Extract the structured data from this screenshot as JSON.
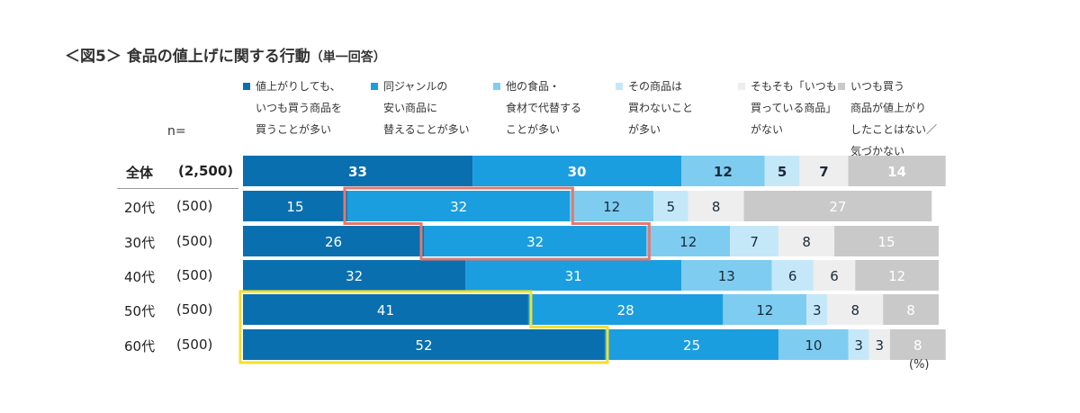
{
  "title": {
    "main": "＜図5＞ 食品の値上げに関する行動",
    "sub": "（単一回答）"
  },
  "n_label": "n=",
  "unit_label": "(%)",
  "chart_data": {
    "type": "bar",
    "orientation": "horizontal",
    "stacked": true,
    "normalized_100": true,
    "categories": [
      "全体",
      "20代",
      "30代",
      "40代",
      "50代",
      "60代"
    ],
    "sample_sizes": [
      "(2,500)",
      "(500)",
      "(500)",
      "(500)",
      "(500)",
      "(500)"
    ],
    "series": [
      {
        "name": "値上がりしても、いつも買う商品を買うことが多い",
        "legend_lines": [
          "値上がりしても、",
          "いつも買う商品を",
          "買うことが多い"
        ],
        "color": "#0a6faf",
        "values": [
          33,
          15,
          26,
          32,
          41,
          52
        ]
      },
      {
        "name": "同ジャンルの安い商品に替えることが多い",
        "legend_lines": [
          "同ジャンルの",
          "安い商品に",
          "替えることが多い"
        ],
        "color": "#1b9ee0",
        "values": [
          30,
          32,
          32,
          31,
          28,
          25
        ]
      },
      {
        "name": "他の食品・食材で代替することが多い",
        "legend_lines": [
          "他の食品・",
          "食材で代替する",
          "ことが多い"
        ],
        "color": "#7ecdf0",
        "values": [
          12,
          12,
          12,
          13,
          12,
          10
        ]
      },
      {
        "name": "その商品は買わないことが多い",
        "legend_lines": [
          "その商品は",
          "買わないこと",
          "が多い"
        ],
        "color": "#c5e8f8",
        "values": [
          5,
          5,
          7,
          6,
          3,
          3
        ]
      },
      {
        "name": "そもそも「いつも買っている商品」がない",
        "legend_lines": [
          "そもそも「いつも",
          "買っている商品」",
          "がない"
        ],
        "color": "#eeeeee",
        "values": [
          7,
          8,
          8,
          6,
          8,
          3
        ]
      },
      {
        "name": "いつも買う商品が値上がりしたことはない／気づかない",
        "legend_lines": [
          "いつも買う",
          "商品が値上がり",
          "したことはない／",
          "気づかない"
        ],
        "color": "#c9c9c9",
        "values": [
          14,
          27,
          15,
          12,
          8,
          8
        ]
      }
    ],
    "highlights": [
      {
        "rows": [
          "20代",
          "30代"
        ],
        "series": "同ジャンルの安い商品に替えることが多い",
        "color": "#e07a6e"
      },
      {
        "rows": [
          "50代",
          "60代"
        ],
        "series": "値上がりしても、いつも買う商品を買うことが多い",
        "color": "#f0e030"
      }
    ],
    "xlim": [
      0,
      100
    ]
  }
}
